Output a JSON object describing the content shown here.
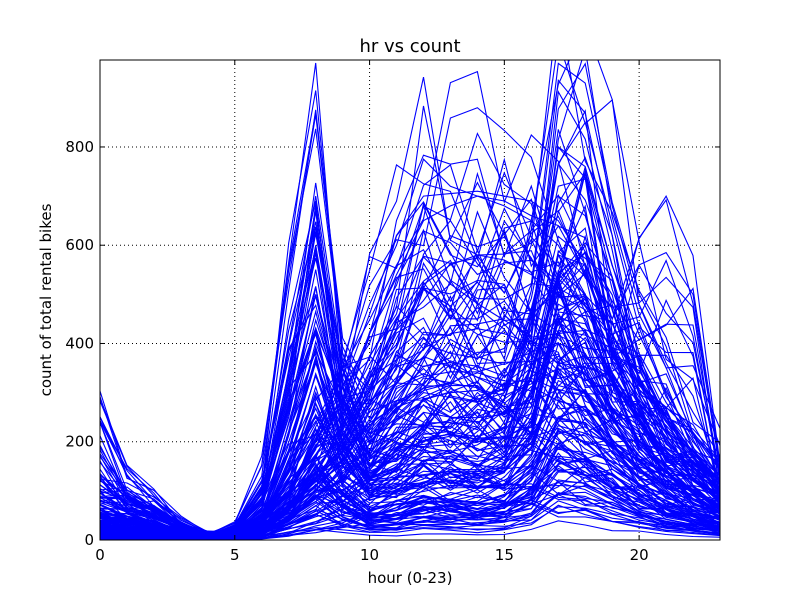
{
  "chart_data": {
    "type": "line",
    "title": "hr vs count",
    "xlabel": "hour (0-23)",
    "ylabel": "count of total rental bikes",
    "xlim": [
      0,
      23
    ],
    "ylim": [
      0,
      977
    ],
    "xticks": [
      0,
      5,
      10,
      15,
      20
    ],
    "yticks": [
      0,
      200,
      400,
      600,
      800
    ],
    "grid": true,
    "grid_style": "dotted",
    "legend": "none",
    "series_color": "#0000ff",
    "x": [
      0,
      1,
      2,
      3,
      4,
      5,
      6,
      7,
      8,
      9,
      10,
      11,
      12,
      13,
      14,
      15,
      16,
      17,
      18,
      19,
      20,
      21,
      22,
      23
    ],
    "series": [
      {
        "values": [
          40,
          30,
          20,
          10,
          5,
          20,
          80,
          250,
          500,
          250,
          150,
          180,
          230,
          220,
          210,
          230,
          330,
          580,
          560,
          420,
          300,
          220,
          160,
          100
        ]
      },
      {
        "values": [
          16,
          10,
          7,
          3,
          2,
          6,
          35,
          140,
          300,
          170,
          90,
          110,
          140,
          135,
          125,
          140,
          210,
          400,
          380,
          280,
          200,
          140,
          100,
          60
        ]
      },
      {
        "values": [
          60,
          40,
          30,
          15,
          8,
          25,
          110,
          400,
          700,
          330,
          200,
          250,
          300,
          290,
          280,
          300,
          430,
          800,
          760,
          560,
          380,
          280,
          200,
          130
        ]
      },
      {
        "values": [
          8,
          5,
          3,
          2,
          1,
          3,
          15,
          60,
          120,
          80,
          50,
          60,
          80,
          75,
          70,
          80,
          120,
          220,
          200,
          150,
          110,
          80,
          50,
          30
        ]
      },
      {
        "values": [
          80,
          60,
          45,
          25,
          10,
          30,
          130,
          550,
          837,
          380,
          260,
          320,
          400,
          380,
          370,
          390,
          520,
          970,
          930,
          680,
          480,
          360,
          260,
          170
        ]
      },
      {
        "values": [
          100,
          80,
          60,
          30,
          10,
          15,
          40,
          90,
          160,
          230,
          330,
          430,
          520,
          560,
          580,
          570,
          540,
          500,
          420,
          320,
          240,
          180,
          140,
          100
        ]
      },
      {
        "values": [
          120,
          95,
          70,
          35,
          12,
          18,
          45,
          110,
          200,
          290,
          420,
          540,
          650,
          680,
          700,
          680,
          650,
          600,
          500,
          380,
          280,
          210,
          160,
          120
        ]
      },
      {
        "values": [
          60,
          45,
          30,
          15,
          5,
          8,
          20,
          60,
          110,
          160,
          240,
          320,
          390,
          420,
          430,
          420,
          400,
          360,
          300,
          230,
          170,
          130,
          100,
          70
        ]
      },
      {
        "values": [
          283,
          150,
          90,
          40,
          15,
          20,
          50,
          120,
          230,
          330,
          480,
          600,
          775,
          720,
          700,
          690,
          660,
          640,
          540,
          420,
          320,
          240,
          180,
          130
        ]
      },
      {
        "values": [
          250,
          130,
          80,
          35,
          12,
          18,
          45,
          100,
          200,
          310,
          460,
          620,
          700,
          705,
          710,
          700,
          690,
          650,
          560,
          450,
          560,
          585,
          500,
          140
        ]
      },
      {
        "values": [
          30,
          20,
          15,
          8,
          4,
          10,
          40,
          180,
          360,
          200,
          120,
          140,
          170,
          165,
          160,
          170,
          260,
          480,
          450,
          330,
          240,
          170,
          120,
          80
        ]
      },
      {
        "values": [
          50,
          35,
          25,
          12,
          6,
          15,
          60,
          300,
          600,
          280,
          170,
          210,
          260,
          250,
          240,
          260,
          380,
          700,
          660,
          480,
          330,
          250,
          180,
          110
        ]
      }
    ]
  }
}
